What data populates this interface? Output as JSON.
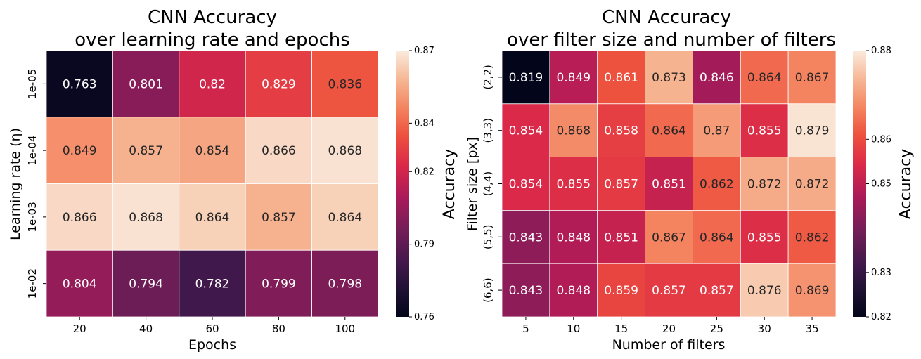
{
  "chart_data": [
    {
      "type": "heatmap",
      "title": "CNN Accuracy\nover learning rate and epochs",
      "xlabel": "Epochs",
      "ylabel": "Learning rate (η)",
      "x": [
        "20",
        "40",
        "60",
        "80",
        "100"
      ],
      "y": [
        "1e-05",
        "1e-04",
        "1e-03",
        "1e-02"
      ],
      "values": [
        [
          0.763,
          0.801,
          0.82,
          0.829,
          0.836
        ],
        [
          0.849,
          0.857,
          0.854,
          0.866,
          0.868
        ],
        [
          0.866,
          0.868,
          0.864,
          0.857,
          0.864
        ],
        [
          0.804,
          0.794,
          0.782,
          0.799,
          0.798
        ]
      ],
      "value_labels": [
        [
          "0.763",
          "0.801",
          "0.82",
          "0.829",
          "0.836"
        ],
        [
          "0.849",
          "0.857",
          "0.854",
          "0.866",
          "0.868"
        ],
        [
          "0.866",
          "0.868",
          "0.864",
          "0.857",
          "0.864"
        ],
        [
          "0.804",
          "0.794",
          "0.782",
          "0.799",
          "0.798"
        ]
      ],
      "colorbar": {
        "label": "Accuracy",
        "range": [
          0.76,
          0.87
        ],
        "ticks": [
          "0.76",
          "0.79",
          "0.82",
          "0.84",
          "0.87"
        ]
      },
      "colormap": "rocket"
    },
    {
      "type": "heatmap",
      "title": "CNN Accuracy\nover filter size and number of filters",
      "xlabel": "Number of filters",
      "ylabel": "Filter size [px]",
      "x": [
        "5",
        "10",
        "15",
        "20",
        "25",
        "30",
        "35"
      ],
      "y": [
        "(2,2)",
        "(3,3)",
        "(4,4)",
        "(5,5)",
        "(6,6)"
      ],
      "values": [
        [
          0.819,
          0.849,
          0.861,
          0.873,
          0.846,
          0.864,
          0.867
        ],
        [
          0.854,
          0.868,
          0.858,
          0.864,
          0.87,
          0.855,
          0.879
        ],
        [
          0.854,
          0.855,
          0.857,
          0.851,
          0.862,
          0.872,
          0.872
        ],
        [
          0.843,
          0.848,
          0.851,
          0.867,
          0.864,
          0.855,
          0.862
        ],
        [
          0.843,
          0.848,
          0.859,
          0.857,
          0.857,
          0.876,
          0.869
        ]
      ],
      "value_labels": [
        [
          "0.819",
          "0.849",
          "0.861",
          "0.873",
          "0.846",
          "0.864",
          "0.867"
        ],
        [
          "0.854",
          "0.868",
          "0.858",
          "0.864",
          "0.87",
          "0.855",
          "0.879"
        ],
        [
          "0.854",
          "0.855",
          "0.857",
          "0.851",
          "0.862",
          "0.872",
          "0.872"
        ],
        [
          "0.843",
          "0.848",
          "0.851",
          "0.867",
          "0.864",
          "0.855",
          "0.862"
        ],
        [
          "0.843",
          "0.848",
          "0.859",
          "0.857",
          "0.857",
          "0.876",
          "0.869"
        ]
      ],
      "colorbar": {
        "label": "Accuracy",
        "range": [
          0.82,
          0.88
        ],
        "ticks": [
          "0.82",
          "0.83",
          "0.85",
          "0.86",
          "0.88"
        ]
      },
      "colormap": "rocket"
    }
  ]
}
